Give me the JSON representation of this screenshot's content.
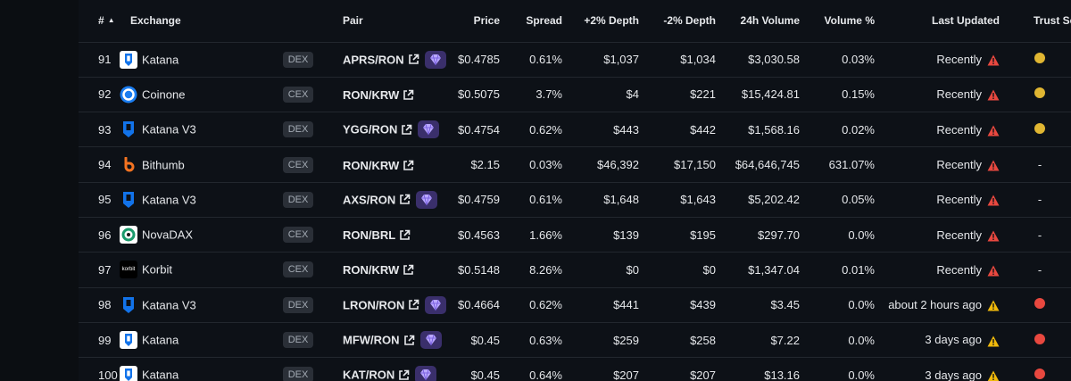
{
  "header": {
    "num": "#",
    "exchange": "Exchange",
    "pair": "Pair",
    "price": "Price",
    "spread": "Spread",
    "depth_pos": "+2% Depth",
    "depth_neg": "-2% Depth",
    "volume": "24h Volume",
    "volume_pct": "Volume %",
    "last_updated": "Last Updated",
    "trust": "Trust Score"
  },
  "colors": {
    "yellow": "#e0b632",
    "red": "#e8483f",
    "warn_red": "#e8483f",
    "warn_yellow": "#f0b90b"
  },
  "rows": [
    {
      "num": "91",
      "exchange": "Katana",
      "logo": "katana",
      "type": "DEX",
      "pair": "APRS/RON",
      "gem": true,
      "price": "$0.4785",
      "spread": "0.61%",
      "depth_pos": "$1,037",
      "depth_neg": "$1,034",
      "volume": "$3,030.58",
      "volume_pct": "0.03%",
      "updated": "Recently",
      "warn": "red",
      "trust": "yellow"
    },
    {
      "num": "92",
      "exchange": "Coinone",
      "logo": "coinone",
      "type": "CEX",
      "pair": "RON/KRW",
      "gem": false,
      "price": "$0.5075",
      "spread": "3.7%",
      "depth_pos": "$4",
      "depth_neg": "$221",
      "volume": "$15,424.81",
      "volume_pct": "0.15%",
      "updated": "Recently",
      "warn": "red",
      "trust": "yellow"
    },
    {
      "num": "93",
      "exchange": "Katana V3",
      "logo": "katana-v3",
      "type": "DEX",
      "pair": "YGG/RON",
      "gem": true,
      "price": "$0.4754",
      "spread": "0.62%",
      "depth_pos": "$443",
      "depth_neg": "$442",
      "volume": "$1,568.16",
      "volume_pct": "0.02%",
      "updated": "Recently",
      "warn": "red",
      "trust": "yellow"
    },
    {
      "num": "94",
      "exchange": "Bithumb",
      "logo": "bithumb",
      "type": "CEX",
      "pair": "RON/KRW",
      "gem": false,
      "price": "$2.15",
      "spread": "0.03%",
      "depth_pos": "$46,392",
      "depth_neg": "$17,150",
      "volume": "$64,646,745",
      "volume_pct": "631.07%",
      "updated": "Recently",
      "warn": "red",
      "trust": "-"
    },
    {
      "num": "95",
      "exchange": "Katana V3",
      "logo": "katana-v3",
      "type": "DEX",
      "pair": "AXS/RON",
      "gem": true,
      "price": "$0.4759",
      "spread": "0.61%",
      "depth_pos": "$1,648",
      "depth_neg": "$1,643",
      "volume": "$5,202.42",
      "volume_pct": "0.05%",
      "updated": "Recently",
      "warn": "red",
      "trust": "-"
    },
    {
      "num": "96",
      "exchange": "NovaDAX",
      "logo": "novadax",
      "type": "CEX",
      "pair": "RON/BRL",
      "gem": false,
      "price": "$0.4563",
      "spread": "1.66%",
      "depth_pos": "$139",
      "depth_neg": "$195",
      "volume": "$297.70",
      "volume_pct": "0.0%",
      "updated": "Recently",
      "warn": "red",
      "trust": "-"
    },
    {
      "num": "97",
      "exchange": "Korbit",
      "logo": "korbit",
      "type": "CEX",
      "pair": "RON/KRW",
      "gem": false,
      "price": "$0.5148",
      "spread": "8.26%",
      "depth_pos": "$0",
      "depth_neg": "$0",
      "volume": "$1,347.04",
      "volume_pct": "0.01%",
      "updated": "Recently",
      "warn": "red",
      "trust": "-"
    },
    {
      "num": "98",
      "exchange": "Katana V3",
      "logo": "katana-v3",
      "type": "DEX",
      "pair": "LRON/RON",
      "gem": true,
      "price": "$0.4664",
      "spread": "0.62%",
      "depth_pos": "$441",
      "depth_neg": "$439",
      "volume": "$3.45",
      "volume_pct": "0.0%",
      "updated": "about 2 hours ago",
      "warn": "yellow",
      "trust": "red"
    },
    {
      "num": "99",
      "exchange": "Katana",
      "logo": "katana",
      "type": "DEX",
      "pair": "MFW/RON",
      "gem": true,
      "price": "$0.45",
      "spread": "0.63%",
      "depth_pos": "$259",
      "depth_neg": "$258",
      "volume": "$7.22",
      "volume_pct": "0.0%",
      "updated": "3 days ago",
      "warn": "yellow",
      "trust": "red"
    },
    {
      "num": "100",
      "exchange": "Katana",
      "logo": "katana",
      "type": "DEX",
      "pair": "KAT/RON",
      "gem": true,
      "price": "$0.45",
      "spread": "0.64%",
      "depth_pos": "$207",
      "depth_neg": "$207",
      "volume": "$13.16",
      "volume_pct": "0.0%",
      "updated": "3 days ago",
      "warn": "yellow",
      "trust": "red"
    }
  ]
}
